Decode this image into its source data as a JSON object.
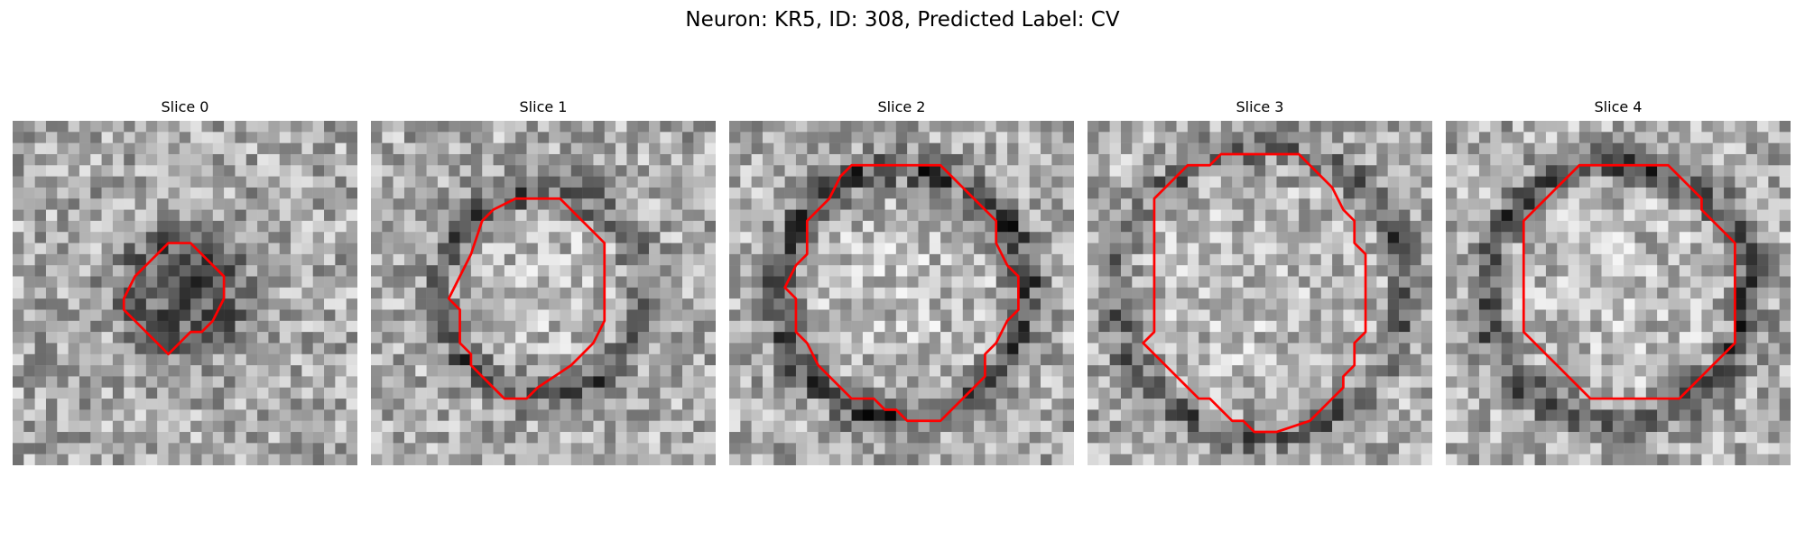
{
  "figure": {
    "title": "Neuron: KR5, ID: 308, Predicted Label: CV",
    "contour_color": "#ff0000",
    "colormap": "gray"
  },
  "slices": [
    {
      "label": "Slice 0",
      "seed": 11,
      "ring_strength": 0.15,
      "blob_dark": 0.35,
      "blob_radius": 0.16,
      "contour": [
        [
          14,
          11
        ],
        [
          16,
          11
        ],
        [
          18,
          13
        ],
        [
          19,
          14
        ],
        [
          19,
          16
        ],
        [
          18,
          18
        ],
        [
          17,
          19
        ],
        [
          16,
          19
        ],
        [
          15,
          20
        ],
        [
          14,
          21
        ],
        [
          13,
          20
        ],
        [
          11,
          18
        ],
        [
          10,
          17
        ],
        [
          10,
          16
        ],
        [
          11,
          14
        ],
        [
          12,
          13
        ],
        [
          13,
          12
        ]
      ]
    },
    {
      "label": "Slice 1",
      "seed": 23,
      "ring_strength": 0.35,
      "blob_dark": 0.0,
      "blob_radius": 0.3,
      "contour": [
        [
          13,
          7
        ],
        [
          17,
          7
        ],
        [
          18,
          8
        ],
        [
          19,
          9
        ],
        [
          20,
          10
        ],
        [
          21,
          11
        ],
        [
          21,
          18
        ],
        [
          20,
          20
        ],
        [
          19,
          21
        ],
        [
          18,
          22
        ],
        [
          15,
          24
        ],
        [
          14,
          25
        ],
        [
          12,
          25
        ],
        [
          11,
          24
        ],
        [
          10,
          23
        ],
        [
          9,
          22
        ],
        [
          9,
          21
        ],
        [
          8,
          20
        ],
        [
          8,
          17
        ],
        [
          7,
          16
        ],
        [
          8,
          14
        ],
        [
          9,
          12
        ],
        [
          10,
          9
        ],
        [
          11,
          8
        ]
      ]
    },
    {
      "label": "Slice 2",
      "seed": 37,
      "ring_strength": 0.45,
      "blob_dark": 0.0,
      "blob_radius": 0.36,
      "contour": [
        [
          11,
          4
        ],
        [
          19,
          4
        ],
        [
          20,
          5
        ],
        [
          21,
          6
        ],
        [
          22,
          7
        ],
        [
          23,
          8
        ],
        [
          24,
          9
        ],
        [
          24,
          11
        ],
        [
          25,
          13
        ],
        [
          26,
          14
        ],
        [
          26,
          17
        ],
        [
          25,
          18
        ],
        [
          24,
          20
        ],
        [
          23,
          21
        ],
        [
          23,
          23
        ],
        [
          22,
          24
        ],
        [
          21,
          25
        ],
        [
          20,
          26
        ],
        [
          19,
          27
        ],
        [
          16,
          27
        ],
        [
          15,
          26
        ],
        [
          14,
          26
        ],
        [
          13,
          25
        ],
        [
          12,
          25
        ],
        [
          11,
          25
        ],
        [
          10,
          24
        ],
        [
          9,
          23
        ],
        [
          8,
          22
        ],
        [
          7,
          20
        ],
        [
          6,
          19
        ],
        [
          6,
          16
        ],
        [
          5,
          15
        ],
        [
          6,
          13
        ],
        [
          7,
          12
        ],
        [
          7,
          9
        ],
        [
          8,
          8
        ],
        [
          9,
          7
        ],
        [
          10,
          5
        ]
      ]
    },
    {
      "label": "Slice 3",
      "seed": 53,
      "ring_strength": 0.3,
      "blob_dark": 0.0,
      "blob_radius": 0.42,
      "contour": [
        [
          13,
          3
        ],
        [
          19,
          3
        ],
        [
          20,
          4
        ],
        [
          21,
          5
        ],
        [
          22,
          6
        ],
        [
          23,
          8
        ],
        [
          24,
          9
        ],
        [
          24,
          11
        ],
        [
          25,
          12
        ],
        [
          25,
          19
        ],
        [
          24,
          20
        ],
        [
          24,
          22
        ],
        [
          23,
          23
        ],
        [
          23,
          24
        ],
        [
          22,
          25
        ],
        [
          21,
          26
        ],
        [
          20,
          27
        ],
        [
          17,
          28
        ],
        [
          15,
          28
        ],
        [
          14,
          27
        ],
        [
          13,
          27
        ],
        [
          12,
          26
        ],
        [
          11,
          25
        ],
        [
          10,
          25
        ],
        [
          9,
          24
        ],
        [
          8,
          23
        ],
        [
          7,
          22
        ],
        [
          6,
          21
        ],
        [
          5,
          20
        ],
        [
          6,
          19
        ],
        [
          6,
          7
        ],
        [
          7,
          6
        ],
        [
          8,
          5
        ],
        [
          9,
          4
        ],
        [
          10,
          4
        ],
        [
          11,
          4
        ],
        [
          12,
          3
        ]
      ]
    },
    {
      "label": "Slice 4",
      "seed": 71,
      "ring_strength": 0.4,
      "blob_dark": 0.0,
      "blob_radius": 0.38,
      "contour": [
        [
          13,
          4
        ],
        [
          20,
          4
        ],
        [
          21,
          5
        ],
        [
          22,
          6
        ],
        [
          23,
          7
        ],
        [
          23,
          8
        ],
        [
          24,
          9
        ],
        [
          25,
          10
        ],
        [
          26,
          11
        ],
        [
          26,
          20
        ],
        [
          25,
          21
        ],
        [
          24,
          22
        ],
        [
          23,
          23
        ],
        [
          22,
          24
        ],
        [
          21,
          25
        ],
        [
          13,
          25
        ],
        [
          12,
          24
        ],
        [
          11,
          23
        ],
        [
          10,
          22
        ],
        [
          9,
          21
        ],
        [
          8,
          20
        ],
        [
          7,
          19
        ],
        [
          7,
          9
        ],
        [
          8,
          8
        ],
        [
          9,
          7
        ],
        [
          10,
          6
        ],
        [
          11,
          5
        ],
        [
          12,
          4
        ]
      ]
    }
  ]
}
